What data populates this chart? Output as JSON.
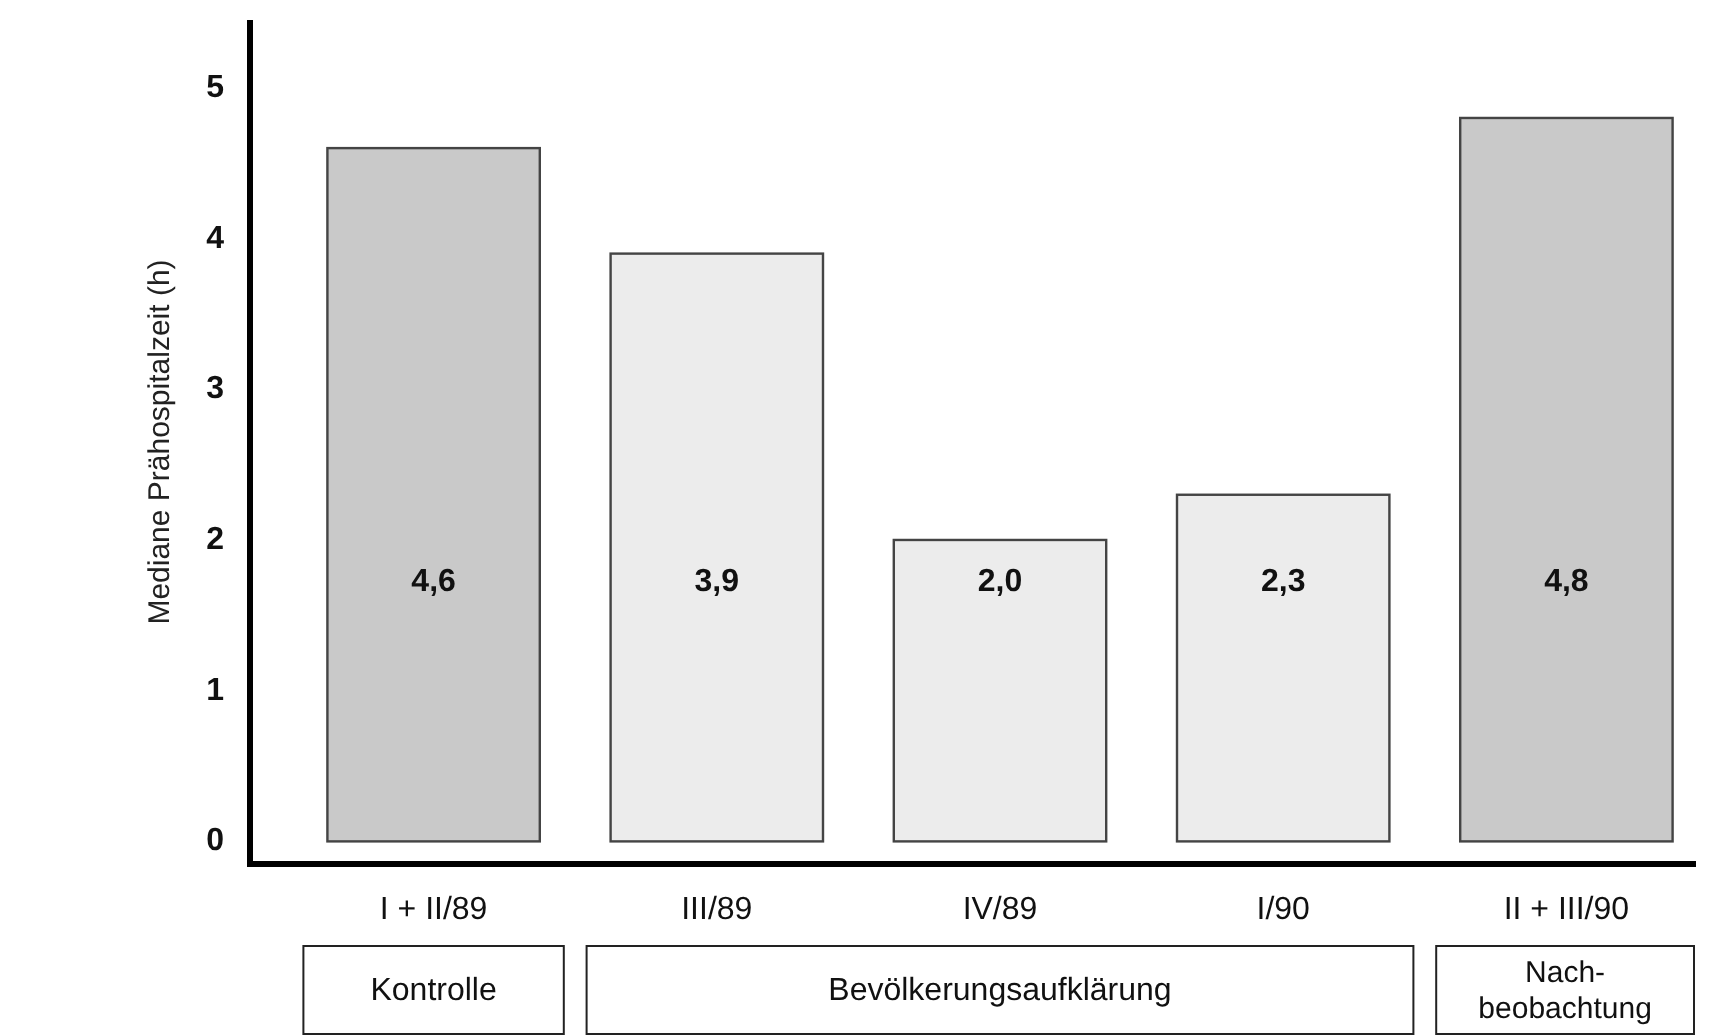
{
  "chart_data": {
    "type": "bar",
    "ylabel": "Mediane Prähospitalzeit (h)",
    "categories": [
      "I + II/89",
      "III/89",
      "IV/89",
      "I/90",
      "II + III/90"
    ],
    "values": [
      4.6,
      3.9,
      2.0,
      2.3,
      4.8
    ],
    "colors": [
      "#c9c9c9",
      "#ececec",
      "#ececec",
      "#ececec",
      "#c9c9c9"
    ],
    "value_labels": [
      "4,6",
      "3,9",
      "2,0",
      "2,3",
      "4,8"
    ],
    "ylim": [
      -0.15,
      5.45
    ],
    "yticks": [
      0,
      1,
      2,
      3,
      4,
      5
    ],
    "grid": false,
    "annotations": [
      "Kontrolle",
      "Bevölkerungsaufklärung",
      "Nach-\nbeobachtung"
    ]
  }
}
